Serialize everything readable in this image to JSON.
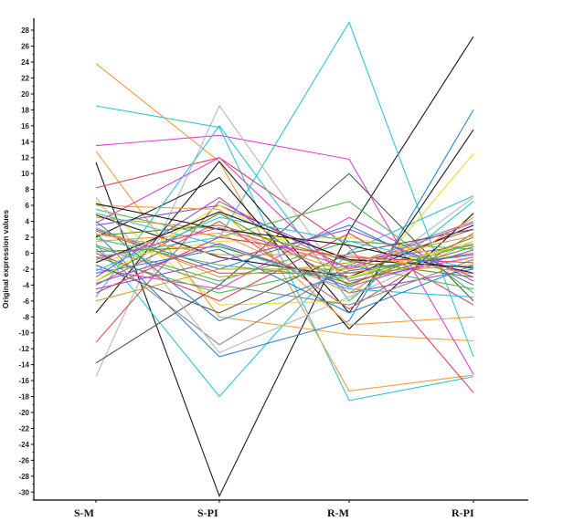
{
  "chart_data": {
    "type": "line",
    "title": "",
    "xlabel": "",
    "ylabel": "Original expression values",
    "categories": [
      "S-M",
      "S-PI",
      "R-M",
      "R-PI"
    ],
    "ylim": [
      -31,
      29.5
    ],
    "yticks": [
      28,
      26,
      24,
      22,
      20,
      18,
      16,
      14,
      12,
      10,
      8,
      6,
      4,
      2,
      0,
      -2,
      -4,
      -6,
      -8,
      -10,
      -12,
      -14,
      -16,
      -18,
      -20,
      -22,
      -24,
      -26,
      -28,
      -30
    ],
    "grid": false,
    "legend": "none",
    "series": [
      {
        "color": "#1a1a1a",
        "values": [
          11.4,
          -30.5,
          2.8,
          27.2
        ]
      },
      {
        "color": "#2ec4d6",
        "values": [
          -0.5,
          2.0,
          29.0,
          -13.0
        ]
      },
      {
        "color": "#2ec4d6",
        "values": [
          18.5,
          15.8,
          -18.5,
          -15.5
        ]
      },
      {
        "color": "#f39a3c",
        "values": [
          23.8,
          11.5,
          -17.3,
          -15.3
        ]
      },
      {
        "color": "#f0a040",
        "values": [
          12.8,
          -8.0,
          -10.2,
          -11.0
        ]
      },
      {
        "color": "#e040c8",
        "values": [
          13.5,
          14.8,
          11.8,
          -15.2
        ]
      },
      {
        "color": "#e04060",
        "values": [
          8.2,
          12.0,
          0.8,
          -17.5
        ]
      },
      {
        "color": "#b8b8b8",
        "values": [
          -15.5,
          18.5,
          -4.5,
          7.0
        ]
      },
      {
        "color": "#2ec4d6",
        "values": [
          1.2,
          -18.0,
          0.2,
          7.2
        ]
      },
      {
        "color": "#555555",
        "values": [
          -13.8,
          -4.0,
          10.0,
          -6.0
        ]
      },
      {
        "color": "#1a1a1a",
        "values": [
          -7.5,
          11.5,
          -7.5,
          15.5
        ]
      },
      {
        "color": "#3080d0",
        "values": [
          2.5,
          -13.0,
          -8.5,
          18.0
        ]
      },
      {
        "color": "#e8e020",
        "values": [
          6.5,
          -6.5,
          -6.0,
          12.5
        ]
      },
      {
        "color": "#d05858",
        "values": [
          -11.2,
          6.5,
          -2.0,
          3.0
        ]
      },
      {
        "color": "#50b850",
        "values": [
          5.5,
          2.0,
          6.5,
          -5.0
        ]
      },
      {
        "color": "#9050d0",
        "values": [
          3.5,
          6.0,
          -1.0,
          1.0
        ]
      },
      {
        "color": "#1a1a1a",
        "values": [
          2.0,
          9.5,
          -9.5,
          5.0
        ]
      },
      {
        "color": "#6a8c1a",
        "values": [
          -3.5,
          5.0,
          -4.0,
          2.0
        ]
      },
      {
        "color": "#c8a030",
        "values": [
          4.5,
          3.0,
          -2.5,
          -1.5
        ]
      },
      {
        "color": "#e040c8",
        "values": [
          -2.0,
          -4.5,
          4.5,
          -3.5
        ]
      },
      {
        "color": "#888888",
        "values": [
          0.5,
          -11.5,
          -1.5,
          4.0
        ]
      },
      {
        "color": "#2ec4d6",
        "values": [
          -5.5,
          16.0,
          -6.0,
          6.5
        ]
      },
      {
        "color": "#f39a3c",
        "values": [
          6.0,
          5.5,
          -9.0,
          -8.0
        ]
      },
      {
        "color": "#e8e020",
        "values": [
          -1.0,
          1.5,
          2.0,
          -1.0
        ]
      },
      {
        "color": "#3080d0",
        "values": [
          3.0,
          -2.0,
          3.5,
          -4.0
        ]
      },
      {
        "color": "#d05858",
        "values": [
          -4.0,
          4.0,
          -7.0,
          2.5
        ]
      },
      {
        "color": "#50b850",
        "values": [
          1.0,
          -3.5,
          1.5,
          0.5
        ]
      },
      {
        "color": "#1a1a1a",
        "values": [
          4.8,
          -0.5,
          -3.0,
          3.5
        ]
      },
      {
        "color": "#9050d0",
        "values": [
          -3.0,
          7.0,
          -5.0,
          -2.0
        ]
      },
      {
        "color": "#b8b8b8",
        "values": [
          7.0,
          -12.5,
          -5.5,
          1.5
        ]
      },
      {
        "color": "#e04060",
        "values": [
          0.0,
          -6.0,
          2.5,
          -6.5
        ]
      },
      {
        "color": "#6a8c1a",
        "values": [
          2.2,
          3.5,
          -1.0,
          -3.0
        ]
      },
      {
        "color": "#c8a030",
        "values": [
          -6.0,
          -2.0,
          -2.0,
          1.0
        ]
      },
      {
        "color": "#2ec4d6",
        "values": [
          5.0,
          1.0,
          -4.5,
          -5.5
        ]
      },
      {
        "color": "#555555",
        "values": [
          -1.5,
          -7.5,
          0.0,
          3.0
        ]
      },
      {
        "color": "#e040c8",
        "values": [
          3.8,
          12.0,
          -3.5,
          -0.5
        ]
      },
      {
        "color": "#3080d0",
        "values": [
          -2.5,
          0.5,
          -7.5,
          -1.5
        ]
      },
      {
        "color": "#f39a3c",
        "values": [
          1.5,
          2.5,
          -5.0,
          4.5
        ]
      },
      {
        "color": "#50b850",
        "values": [
          -0.5,
          -5.0,
          -1.5,
          -4.5
        ]
      },
      {
        "color": "#1a1a1a",
        "values": [
          6.2,
          3.0,
          1.0,
          -2.5
        ]
      },
      {
        "color": "#9050d0",
        "values": [
          -4.5,
          -1.0,
          3.0,
          -3.0
        ]
      },
      {
        "color": "#d05858",
        "values": [
          2.8,
          -2.5,
          -2.5,
          0.0
        ]
      },
      {
        "color": "#e8e020",
        "values": [
          -3.5,
          6.0,
          -3.0,
          1.5
        ]
      },
      {
        "color": "#888888",
        "values": [
          0.8,
          -4.0,
          -6.5,
          -0.8
        ]
      },
      {
        "color": "#2ec4d6",
        "values": [
          -2.2,
          4.5,
          1.5,
          -2.0
        ]
      },
      {
        "color": "#c8a030",
        "values": [
          3.2,
          -3.0,
          -1.2,
          2.2
        ]
      },
      {
        "color": "#e04060",
        "values": [
          -5.0,
          2.0,
          -0.5,
          -1.2
        ]
      },
      {
        "color": "#6a8c1a",
        "values": [
          0.2,
          0.8,
          -3.8,
          0.8
        ]
      },
      {
        "color": "#3080d0",
        "values": [
          4.0,
          -8.5,
          -2.2,
          -0.2
        ]
      },
      {
        "color": "#1a1a1a",
        "values": [
          -1.2,
          5.2,
          -0.8,
          -1.8
        ]
      },
      {
        "color": "#50b850",
        "values": [
          1.8,
          -1.5,
          -3.2,
          1.2
        ]
      },
      {
        "color": "#e040c8",
        "values": [
          -0.8,
          3.2,
          -1.8,
          3.8
        ]
      },
      {
        "color": "#f39a3c",
        "values": [
          2.4,
          -0.2,
          -0.2,
          -2.6
        ]
      },
      {
        "color": "#9050d0",
        "values": [
          -3.8,
          1.2,
          -4.2,
          0.4
        ]
      }
    ]
  }
}
